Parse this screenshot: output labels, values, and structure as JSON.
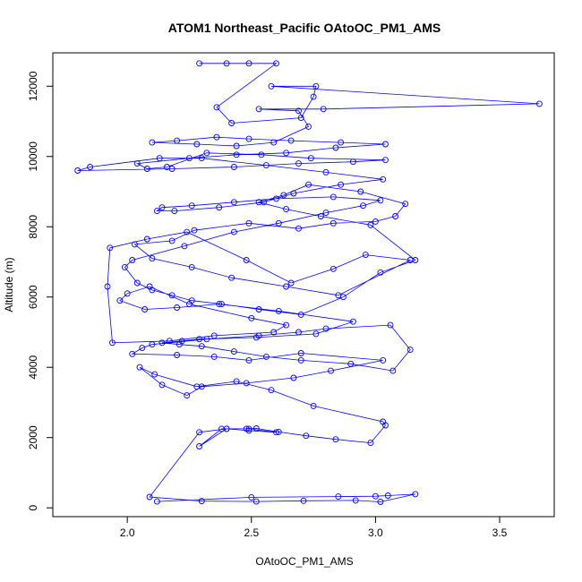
{
  "chart_data": {
    "type": "line",
    "title": "ATOM1 Northeast_Pacific OAtoOC_PM1_AMS",
    "xlabel": "OAtoOC_PM1_AMS",
    "ylabel": "Altitude (m)",
    "xlim": [
      1.7,
      3.72
    ],
    "ylim": [
      -250,
      12950
    ],
    "x_ticks": [
      2.0,
      2.5,
      3.0,
      3.5
    ],
    "x_tick_labels": [
      "2.0",
      "2.5",
      "3.0",
      "3.5"
    ],
    "y_ticks": [
      0,
      2000,
      4000,
      6000,
      8000,
      10000,
      12000
    ],
    "y_tick_labels": [
      "0",
      "2000",
      "4000",
      "6000",
      "8000",
      "10000",
      "12000"
    ],
    "grid": false,
    "legend": "none",
    "series_color": "#0000ff",
    "series": [
      {
        "x": [
          2.12,
          2.5,
          2.85,
          3.0,
          3.05,
          3.16,
          3.02,
          2.92,
          2.71,
          2.52,
          2.3,
          2.09,
          2.29,
          2.4,
          2.49,
          2.6,
          2.49,
          2.4,
          2.29,
          2.38,
          2.48,
          2.52,
          2.61,
          2.72,
          2.84,
          2.98,
          3.04,
          3.03,
          2.75,
          2.58,
          2.44,
          2.28,
          2.11,
          2.05,
          2.14,
          2.24,
          2.3,
          2.48,
          2.67,
          2.82,
          3.03,
          2.7,
          2.49,
          2.35,
          2.2,
          2.02,
          2.06,
          2.1,
          2.32,
          2.53,
          2.69,
          2.8,
          3.06,
          3.14,
          3.07,
          2.9,
          2.7,
          2.56,
          2.43,
          2.3,
          2.21,
          2.14,
          2.22,
          2.29,
          2.52,
          2.76,
          2.91,
          2.61,
          2.37,
          2.2,
          2.07,
          1.97,
          2.0,
          2.09,
          2.25,
          2.5,
          2.64,
          2.59,
          2.35,
          2.17,
          1.94,
          1.92,
          1.93,
          2.08,
          2.24,
          2.48,
          2.66,
          2.83,
          2.96,
          3.14,
          2.85,
          2.64,
          2.42,
          2.26,
          2.1,
          2.03,
          2.18,
          2.27,
          2.49,
          2.69,
          2.83,
          3.0,
          3.08,
          3.12,
          2.94,
          2.73,
          2.63,
          2.53,
          2.64,
          2.78,
          2.98,
          3.16,
          3.02,
          2.87,
          2.7,
          2.53,
          2.38,
          2.26,
          2.18,
          2.1,
          2.04,
          1.99,
          2.02,
          2.23,
          2.43,
          2.61,
          2.8,
          2.95,
          3.02,
          2.83,
          2.6,
          2.43,
          2.26,
          2.14,
          2.12,
          2.19,
          2.37,
          2.55,
          2.67,
          2.86,
          3.03,
          2.8,
          2.56,
          2.3,
          2.13,
          1.85,
          1.8,
          2.18,
          2.43,
          2.69,
          2.91,
          3.04,
          2.74,
          2.54,
          2.32,
          2.16,
          2.08,
          2.04,
          2.25,
          2.44,
          2.64,
          2.84,
          3.04,
          2.86,
          2.66,
          2.49,
          2.36,
          2.2,
          2.1,
          2.28,
          2.44,
          2.59,
          2.73,
          2.69,
          2.53,
          2.79,
          3.66,
          2.58,
          2.76,
          2.75,
          2.7,
          2.42,
          2.36,
          2.6,
          2.49,
          2.4,
          2.29
        ],
        "y": [
          180,
          300,
          320,
          330,
          350,
          390,
          170,
          210,
          200,
          180,
          190,
          310,
          2150,
          2250,
          2250,
          2150,
          2200,
          2250,
          1750,
          2250,
          2250,
          2260,
          2160,
          2050,
          1950,
          1850,
          2350,
          2450,
          2900,
          3350,
          3600,
          3450,
          3800,
          4000,
          3500,
          3200,
          3450,
          3550,
          3700,
          3900,
          4200,
          4400,
          4200,
          4300,
          4350,
          4380,
          4550,
          4650,
          4800,
          4900,
          5000,
          5100,
          5200,
          4500,
          3900,
          4100,
          4200,
          4300,
          4450,
          4600,
          4650,
          4700,
          4750,
          4800,
          4850,
          4950,
          5300,
          5600,
          5800,
          5700,
          5650,
          5900,
          6100,
          6300,
          5800,
          5400,
          5200,
          5000,
          4900,
          4750,
          4700,
          6300,
          7400,
          7650,
          7850,
          7050,
          6400,
          6800,
          7200,
          7050,
          6050,
          6300,
          6550,
          6850,
          7100,
          7500,
          7600,
          7900,
          8100,
          7950,
          8100,
          8150,
          8300,
          8650,
          9000,
          9200,
          8900,
          8700,
          8500,
          8300,
          8050,
          7050,
          6700,
          6000,
          5500,
          5650,
          5800,
          5900,
          6050,
          6200,
          6400,
          6850,
          7050,
          7450,
          7850,
          8100,
          8400,
          8600,
          8750,
          8850,
          8800,
          8700,
          8600,
          8550,
          8450,
          8450,
          8550,
          8700,
          8950,
          9200,
          9350,
          9550,
          9750,
          9950,
          9950,
          9700,
          9600,
          9650,
          9700,
          9800,
          9850,
          9900,
          9950,
          10050,
          10100,
          9700,
          9650,
          9800,
          9950,
          10050,
          10100,
          10250,
          10350,
          10400,
          10450,
          10500,
          10550,
          10450,
          10400,
          10350,
          10300,
          10400,
          10850,
          11300,
          11350,
          11350,
          11500,
          12000,
          12000,
          11700,
          11100,
          10950,
          11400,
          12650,
          12650,
          12650,
          12650
        ]
      }
    ]
  }
}
